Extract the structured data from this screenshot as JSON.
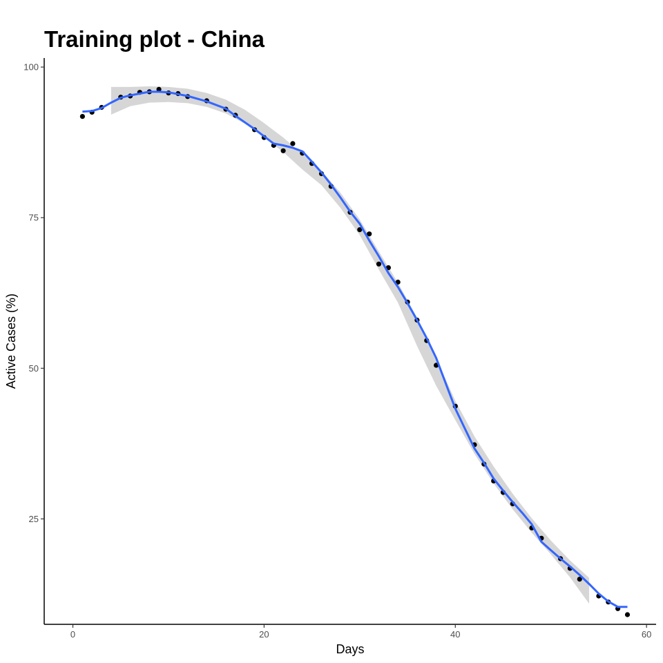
{
  "colors": {
    "points": "#000000",
    "line": "#3366ff",
    "band": "#d6d6d6",
    "axis": "#000000",
    "tick_text": "#4d4d4d"
  },
  "chart_data": {
    "type": "scatter",
    "title": "Training plot - China",
    "xlabel": "Days",
    "ylabel": "Active Cases (%)",
    "xlim": [
      -3,
      61
    ],
    "ylim": [
      7.5,
      101.5
    ],
    "xticks": [
      0,
      20,
      40,
      60
    ],
    "yticks": [
      25,
      50,
      75,
      100
    ],
    "grid": false,
    "legend": "none",
    "points": [
      {
        "x": 1,
        "y": 91.8
      },
      {
        "x": 2,
        "y": 92.5
      },
      {
        "x": 3,
        "y": 93.3
      },
      {
        "x": 5,
        "y": 95.0
      },
      {
        "x": 6,
        "y": 95.2
      },
      {
        "x": 7,
        "y": 95.8
      },
      {
        "x": 8,
        "y": 95.9
      },
      {
        "x": 9,
        "y": 96.3
      },
      {
        "x": 10,
        "y": 95.7
      },
      {
        "x": 11,
        "y": 95.6
      },
      {
        "x": 12,
        "y": 95.1
      },
      {
        "x": 14,
        "y": 94.4
      },
      {
        "x": 16,
        "y": 93.0
      },
      {
        "x": 17,
        "y": 92.0
      },
      {
        "x": 19,
        "y": 89.6
      },
      {
        "x": 20,
        "y": 88.3
      },
      {
        "x": 21,
        "y": 87.0
      },
      {
        "x": 22,
        "y": 86.1
      },
      {
        "x": 23,
        "y": 87.3
      },
      {
        "x": 24,
        "y": 85.7
      },
      {
        "x": 25,
        "y": 84.0
      },
      {
        "x": 26,
        "y": 82.3
      },
      {
        "x": 27,
        "y": 80.2
      },
      {
        "x": 29,
        "y": 75.9
      },
      {
        "x": 30,
        "y": 73.0
      },
      {
        "x": 31,
        "y": 72.3
      },
      {
        "x": 32,
        "y": 67.3
      },
      {
        "x": 33,
        "y": 66.7
      },
      {
        "x": 34,
        "y": 64.3
      },
      {
        "x": 35,
        "y": 61.0
      },
      {
        "x": 36,
        "y": 58.0
      },
      {
        "x": 37,
        "y": 54.6
      },
      {
        "x": 38,
        "y": 50.5
      },
      {
        "x": 40,
        "y": 43.7
      },
      {
        "x": 42,
        "y": 37.3
      },
      {
        "x": 43,
        "y": 34.1
      },
      {
        "x": 44,
        "y": 31.3
      },
      {
        "x": 45,
        "y": 29.4
      },
      {
        "x": 46,
        "y": 27.5
      },
      {
        "x": 48,
        "y": 23.5
      },
      {
        "x": 49,
        "y": 21.8
      },
      {
        "x": 51,
        "y": 18.4
      },
      {
        "x": 52,
        "y": 16.8
      },
      {
        "x": 53,
        "y": 15.0
      },
      {
        "x": 55,
        "y": 12.2
      },
      {
        "x": 56,
        "y": 11.2
      },
      {
        "x": 57,
        "y": 10.1
      },
      {
        "x": 58,
        "y": 9.1
      }
    ],
    "fit_line": [
      {
        "x": 1,
        "y": 92.6
      },
      {
        "x": 2,
        "y": 92.7
      },
      {
        "x": 3,
        "y": 93.2
      },
      {
        "x": 4,
        "y": 94.1
      },
      {
        "x": 5,
        "y": 94.9
      },
      {
        "x": 6,
        "y": 95.3
      },
      {
        "x": 7,
        "y": 95.6
      },
      {
        "x": 8,
        "y": 95.9
      },
      {
        "x": 9,
        "y": 95.9
      },
      {
        "x": 10,
        "y": 95.8
      },
      {
        "x": 11,
        "y": 95.5
      },
      {
        "x": 12,
        "y": 95.2
      },
      {
        "x": 14,
        "y": 94.3
      },
      {
        "x": 16,
        "y": 93.1
      },
      {
        "x": 17,
        "y": 91.9
      },
      {
        "x": 19,
        "y": 89.7
      },
      {
        "x": 20,
        "y": 88.5
      },
      {
        "x": 21,
        "y": 87.3
      },
      {
        "x": 22,
        "y": 87.0
      },
      {
        "x": 23,
        "y": 86.6
      },
      {
        "x": 24,
        "y": 86.0
      },
      {
        "x": 25,
        "y": 84.3
      },
      {
        "x": 26,
        "y": 82.5
      },
      {
        "x": 27,
        "y": 80.5
      },
      {
        "x": 28,
        "y": 78.3
      },
      {
        "x": 29,
        "y": 76.0
      },
      {
        "x": 30,
        "y": 74.0
      },
      {
        "x": 31,
        "y": 71.2
      },
      {
        "x": 32,
        "y": 68.6
      },
      {
        "x": 33,
        "y": 65.8
      },
      {
        "x": 34,
        "y": 63.5
      },
      {
        "x": 35,
        "y": 60.8
      },
      {
        "x": 36,
        "y": 58.0
      },
      {
        "x": 37,
        "y": 55.0
      },
      {
        "x": 38,
        "y": 51.7
      },
      {
        "x": 39,
        "y": 47.5
      },
      {
        "x": 40,
        "y": 43.3
      },
      {
        "x": 41,
        "y": 40.0
      },
      {
        "x": 42,
        "y": 36.7
      },
      {
        "x": 43,
        "y": 34.3
      },
      {
        "x": 44,
        "y": 31.7
      },
      {
        "x": 45,
        "y": 29.7
      },
      {
        "x": 46,
        "y": 27.8
      },
      {
        "x": 47,
        "y": 26.0
      },
      {
        "x": 48,
        "y": 24.1
      },
      {
        "x": 49,
        "y": 21.2
      },
      {
        "x": 50,
        "y": 19.8
      },
      {
        "x": 51,
        "y": 18.4
      },
      {
        "x": 52,
        "y": 17.1
      },
      {
        "x": 53,
        "y": 15.7
      },
      {
        "x": 54,
        "y": 14.2
      },
      {
        "x": 55,
        "y": 12.6
      },
      {
        "x": 56,
        "y": 11.3
      },
      {
        "x": 57,
        "y": 10.4
      },
      {
        "x": 58,
        "y": 10.4
      }
    ],
    "band": [
      {
        "x": 4,
        "lo": 92.1,
        "hi": 96.7
      },
      {
        "x": 6,
        "lo": 93.5,
        "hi": 96.7
      },
      {
        "x": 8,
        "lo": 94.1,
        "hi": 96.8
      },
      {
        "x": 10,
        "lo": 94.2,
        "hi": 96.7
      },
      {
        "x": 12,
        "lo": 94.0,
        "hi": 96.4
      },
      {
        "x": 14,
        "lo": 93.4,
        "hi": 95.7
      },
      {
        "x": 16,
        "lo": 92.3,
        "hi": 94.6
      },
      {
        "x": 18,
        "lo": 90.6,
        "hi": 92.9
      },
      {
        "x": 20,
        "lo": 88.3,
        "hi": 90.7
      },
      {
        "x": 22,
        "lo": 85.9,
        "hi": 88.3
      },
      {
        "x": 24,
        "lo": 83.0,
        "hi": 85.6
      },
      {
        "x": 26,
        "lo": 80.4,
        "hi": 82.8
      },
      {
        "x": 28,
        "lo": 76.6,
        "hi": 79.1
      },
      {
        "x": 30,
        "lo": 72.1,
        "hi": 74.7
      },
      {
        "x": 32,
        "lo": 66.4,
        "hi": 69.4
      },
      {
        "x": 34,
        "lo": 60.9,
        "hi": 64.2
      },
      {
        "x": 36,
        "lo": 53.7,
        "hi": 58.4
      },
      {
        "x": 38,
        "lo": 47.1,
        "hi": 51.7
      },
      {
        "x": 40,
        "lo": 41.4,
        "hi": 44.6
      },
      {
        "x": 42,
        "lo": 35.8,
        "hi": 38.7
      },
      {
        "x": 44,
        "lo": 30.9,
        "hi": 33.7
      },
      {
        "x": 46,
        "lo": 26.6,
        "hi": 29.2
      },
      {
        "x": 48,
        "lo": 22.7,
        "hi": 25.1
      },
      {
        "x": 50,
        "lo": 19.1,
        "hi": 21.4
      },
      {
        "x": 52,
        "lo": 15.3,
        "hi": 18.1
      },
      {
        "x": 54,
        "lo": 10.9,
        "hi": 15.2
      }
    ]
  }
}
